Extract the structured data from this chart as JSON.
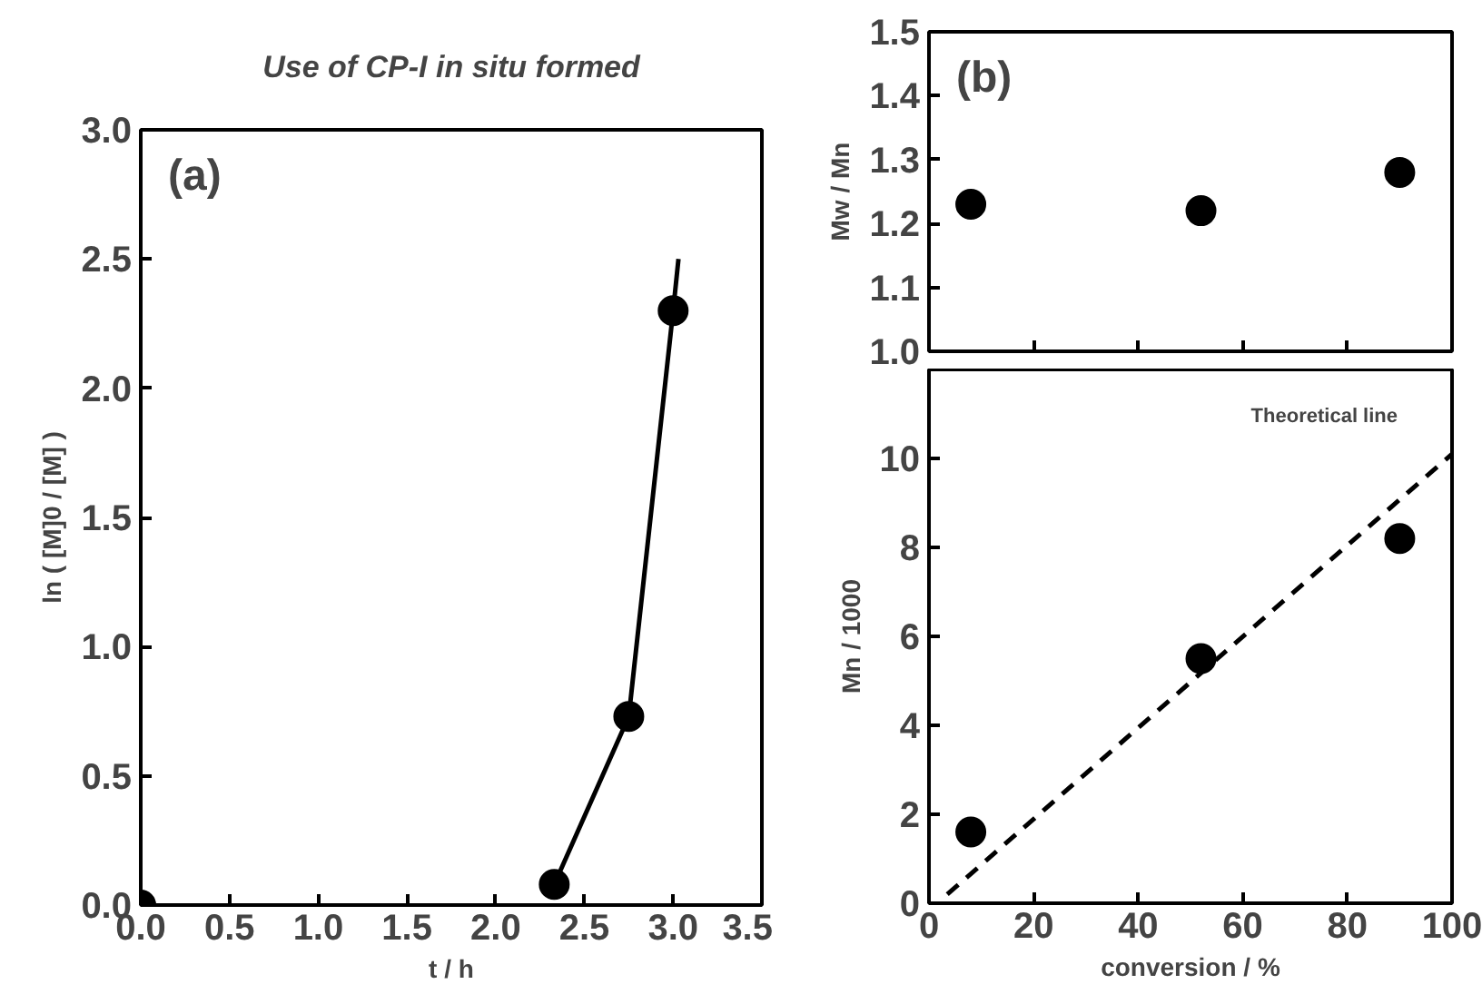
{
  "chart_data": [
    {
      "type": "scatter",
      "title": "Use of CP-I in situ formed",
      "xlabel": "t / h",
      "ylabel": "ln ( [M]0 / [M] )",
      "annotations": [
        "(a)"
      ],
      "xlim": [
        0,
        3.5
      ],
      "ylim": [
        0,
        3.0
      ],
      "xticks": [
        {
          "value": 0,
          "label": "0.0"
        },
        0.5,
        {
          "value": 1,
          "label": "1.0"
        },
        1.5,
        {
          "value": 2,
          "label": "2.0"
        },
        2.5,
        {
          "value": 3,
          "label": "3.0"
        },
        3.5
      ],
      "yticks": [
        {
          "value": 0,
          "label": "0.0"
        },
        0.5,
        {
          "value": 1,
          "label": "1.0"
        },
        1.5,
        {
          "value": 2,
          "label": "2.0"
        },
        2.5,
        {
          "value": 3,
          "label": "3.0"
        }
      ],
      "grid": false,
      "series": [
        {
          "type": "line",
          "color": "#000000",
          "marker": "none",
          "line_style": "solid",
          "x": [
            2.33,
            2.75,
            3.0,
            3.03
          ],
          "values": [
            0.08,
            0.73,
            2.3,
            2.5
          ]
        },
        {
          "color": "#000000",
          "marker": "circle",
          "x": [
            0,
            2.33,
            2.75,
            3.0
          ],
          "values": [
            0,
            0.08,
            0.73,
            2.3
          ]
        }
      ]
    },
    {
      "type": "scatter",
      "ylabel": "Mw / Mn",
      "annotations": [
        "(b)"
      ],
      "tick_labels": "y",
      "xlim": [
        0,
        100
      ],
      "ylim": [
        1.0,
        1.5
      ],
      "xticks": [
        0,
        20,
        40,
        60,
        80,
        100
      ],
      "yticks": [
        {
          "value": 1,
          "label": "1.0"
        },
        1.1,
        1.2,
        1.3,
        1.4,
        1.5
      ],
      "grid": false,
      "series": [
        {
          "color": "#000000",
          "marker": "circle",
          "x": [
            8,
            52,
            90
          ],
          "values": [
            1.23,
            1.22,
            1.28
          ]
        }
      ]
    },
    {
      "type": "scatter",
      "xlabel": "conversion / %",
      "ylabel": "Mn / 1000",
      "annotations": [
        "Theoretical line"
      ],
      "xlim": [
        0,
        100
      ],
      "ylim": [
        0,
        12
      ],
      "xticks": [
        0,
        20,
        40,
        60,
        80,
        100
      ],
      "yticks": [
        0,
        2,
        4,
        6,
        8,
        10
      ],
      "grid": false,
      "series": [
        {
          "type": "line",
          "color": "#000000",
          "marker": "none",
          "line_style": "dashed",
          "x": [
            3.5,
            100
          ],
          "values": [
            0.2,
            10.1
          ]
        },
        {
          "color": "#000000",
          "marker": "circle",
          "x": [
            8,
            52,
            90
          ],
          "values": [
            1.6,
            5.5,
            8.2
          ]
        }
      ]
    }
  ]
}
